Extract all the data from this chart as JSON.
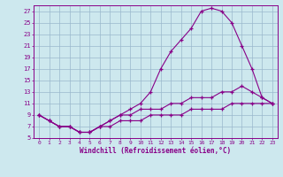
{
  "xlabel": "Windchill (Refroidissement éolien,°C)",
  "background_color": "#cde8ee",
  "grid_color": "#9ab8cc",
  "line_color": "#880088",
  "xlim": [
    -0.5,
    23.5
  ],
  "ylim": [
    5,
    28
  ],
  "xticks": [
    0,
    1,
    2,
    3,
    4,
    5,
    6,
    7,
    8,
    9,
    10,
    11,
    12,
    13,
    14,
    15,
    16,
    17,
    18,
    19,
    20,
    21,
    22,
    23
  ],
  "yticks": [
    5,
    7,
    9,
    11,
    13,
    15,
    17,
    19,
    21,
    23,
    25,
    27
  ],
  "curve1_x": [
    0,
    1,
    2,
    3,
    4,
    5,
    6,
    7,
    8,
    9,
    10,
    11,
    12,
    13,
    14,
    15,
    16,
    17,
    18,
    19,
    20,
    21,
    22,
    23
  ],
  "curve1_y": [
    9,
    8,
    7,
    7,
    6,
    6,
    7,
    8,
    9,
    10,
    11,
    13,
    17,
    20,
    22,
    24,
    27,
    27.5,
    27,
    25,
    21,
    17,
    12,
    11
  ],
  "curve2_x": [
    0,
    1,
    2,
    3,
    4,
    5,
    6,
    7,
    8,
    9,
    10,
    11,
    12,
    13,
    14,
    15,
    16,
    17,
    18,
    19,
    20,
    21,
    22,
    23
  ],
  "curve2_y": [
    9,
    8,
    7,
    7,
    6,
    6,
    7,
    8,
    9,
    9,
    10,
    10,
    10,
    11,
    11,
    12,
    12,
    12,
    13,
    13,
    14,
    13,
    12,
    11
  ],
  "curve3_x": [
    0,
    1,
    2,
    3,
    4,
    5,
    6,
    7,
    8,
    9,
    10,
    11,
    12,
    13,
    14,
    15,
    16,
    17,
    18,
    19,
    20,
    21,
    22,
    23
  ],
  "curve3_y": [
    9,
    8,
    7,
    7,
    6,
    6,
    7,
    7,
    8,
    8,
    8,
    9,
    9,
    9,
    9,
    10,
    10,
    10,
    10,
    11,
    11,
    11,
    11,
    11
  ]
}
